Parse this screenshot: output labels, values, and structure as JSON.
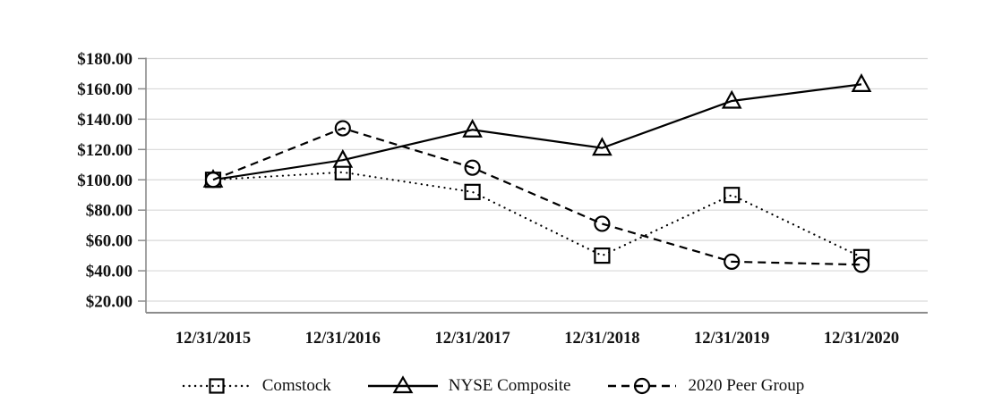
{
  "chart_data": {
    "type": "line",
    "title": "",
    "categories": [
      "12/31/2015",
      "12/31/2016",
      "12/31/2017",
      "12/31/2018",
      "12/31/2019",
      "12/31/2020"
    ],
    "series": [
      {
        "name": "Comstock",
        "marker": "square",
        "line_style": "dotted",
        "values": [
          100,
          105,
          92,
          50,
          90,
          49
        ]
      },
      {
        "name": "NYSE Composite",
        "marker": "triangle",
        "line_style": "solid",
        "values": [
          100,
          113,
          133,
          121,
          152,
          163
        ]
      },
      {
        "name": "2020 Peer Group",
        "marker": "circle",
        "line_style": "dashed",
        "values": [
          100,
          134,
          108,
          71,
          46,
          44
        ]
      }
    ],
    "ylim": [
      20,
      180
    ],
    "yticks": [
      180,
      160,
      140,
      120,
      100,
      80,
      60,
      40,
      20
    ],
    "ytick_labels": [
      "$180.00",
      "$160.00",
      "$140.00",
      "$120.00",
      "$100.00",
      "$80.00",
      "$60.00",
      "$40.00",
      "$20.00"
    ],
    "grid": "horizontal",
    "legend_position": "bottom",
    "colors": {
      "series": "#000000",
      "gridline": "#d9d9d9",
      "axis": "#8c8c8c",
      "text": "#111111",
      "background": "#ffffff"
    }
  }
}
